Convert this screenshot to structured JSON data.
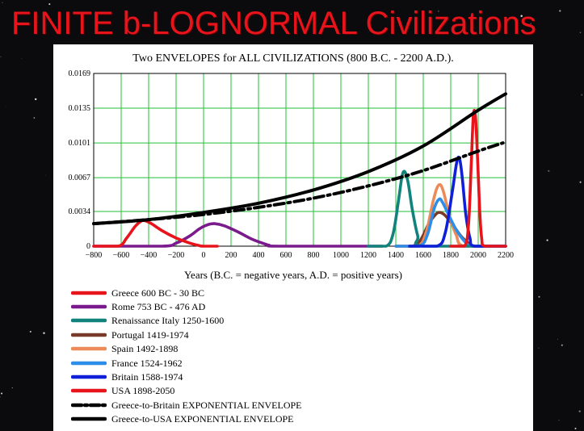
{
  "slide": {
    "title": "FINITE  b-LOGNORMAL Civilizations"
  },
  "chart_data": {
    "type": "line",
    "title": "Two ENVELOPES for ALL CIVILIZATIONS (800 B.C. - 2200 A.D.).",
    "xlabel": "Years (B.C. = negative years, A.D. = positive years)",
    "ylabel": "",
    "xlim": [
      -800,
      2200
    ],
    "ylim": [
      0,
      0.0169
    ],
    "xticks": [
      "−800",
      "−600",
      "−400",
      "−200",
      "0",
      "200",
      "400",
      "600",
      "800",
      "1000",
      "1200",
      "1400",
      "1600",
      "1800",
      "2000",
      "2200"
    ],
    "xtick_values": [
      -800,
      -600,
      -400,
      -200,
      0,
      200,
      400,
      600,
      800,
      1000,
      1200,
      1400,
      1600,
      1800,
      2000,
      2200
    ],
    "yticks": [
      "0",
      "0.0034",
      "0.0067",
      "0.0101",
      "0.0135",
      "0.0169"
    ],
    "ytick_values": [
      0,
      0.0034,
      0.0067,
      0.0101,
      0.0135,
      0.0169
    ],
    "grid": true,
    "gridColor": "#22c03a",
    "series": [
      {
        "name": "Greece 600 BC - 30 BC",
        "color": "#e8141c",
        "style": "solid",
        "x": [
          -800,
          -620,
          -560,
          -500,
          -460,
          -430,
          -380,
          -300,
          -200,
          -100,
          -30,
          0,
          100
        ],
        "y": [
          0,
          0,
          0.0008,
          0.0019,
          0.0024,
          0.0025,
          0.0022,
          0.0015,
          0.0008,
          0.0003,
          5e-05,
          0,
          0
        ]
      },
      {
        "name": "Rome 753 BC - 476 AD",
        "color": "#7a1a8c",
        "style": "solid",
        "x": [
          -800,
          -300,
          -200,
          -100,
          -30,
          30,
          80,
          150,
          250,
          350,
          450,
          476,
          550,
          1300
        ],
        "y": [
          0,
          0,
          0.0003,
          0.001,
          0.0017,
          0.0021,
          0.0022,
          0.002,
          0.0014,
          0.0007,
          0.0002,
          0.0001,
          0,
          0
        ]
      },
      {
        "name": "Renaissance Italy 1250-1600",
        "color": "#12837c",
        "style": "solid",
        "x": [
          1200,
          1330,
          1380,
          1420,
          1445,
          1465,
          1490,
          1520,
          1560,
          1600,
          2200
        ],
        "y": [
          0,
          0,
          0.0012,
          0.0045,
          0.0068,
          0.0073,
          0.0062,
          0.0036,
          0.001,
          0,
          0
        ]
      },
      {
        "name": "Portugal 1419-1974",
        "color": "#7a3a2a",
        "style": "solid",
        "x": [
          1400,
          1520,
          1580,
          1640,
          1690,
          1720,
          1760,
          1820,
          1880,
          1940,
          1974,
          2200
        ],
        "y": [
          0,
          0,
          0.0006,
          0.0022,
          0.0031,
          0.0033,
          0.003,
          0.002,
          0.0009,
          0.0002,
          0,
          0
        ]
      },
      {
        "name": "Spain 1492-1898",
        "color": "#ec8a58",
        "style": "solid",
        "x": [
          1400,
          1560,
          1620,
          1670,
          1700,
          1725,
          1750,
          1790,
          1840,
          1898,
          2200
        ],
        "y": [
          0,
          0,
          0.0013,
          0.0043,
          0.0057,
          0.006,
          0.0052,
          0.003,
          0.0011,
          0,
          0
        ]
      },
      {
        "name": "France 1524-1962",
        "color": "#2c8ee8",
        "style": "solid",
        "x": [
          1400,
          1570,
          1630,
          1680,
          1715,
          1740,
          1780,
          1840,
          1900,
          1962,
          2200
        ],
        "y": [
          0,
          0,
          0.0011,
          0.0037,
          0.0046,
          0.0043,
          0.0032,
          0.0016,
          0.0005,
          0,
          0
        ]
      },
      {
        "name": "Britain 1588-1974",
        "color": "#1020d8",
        "style": "solid",
        "x": [
          1500,
          1700,
          1760,
          1810,
          1845,
          1865,
          1885,
          1910,
          1940,
          1974,
          2200
        ],
        "y": [
          0,
          0,
          0.0013,
          0.0052,
          0.0083,
          0.0085,
          0.0066,
          0.0031,
          0.0008,
          0,
          0
        ]
      },
      {
        "name": "USA 1898-2050",
        "color": "#e8141c",
        "style": "solid",
        "x": [
          1800,
          1900,
          1930,
          1950,
          1965,
          1980,
          1995,
          2010,
          2025,
          2050,
          2200
        ],
        "y": [
          0,
          0,
          0.0022,
          0.0082,
          0.0128,
          0.0127,
          0.0088,
          0.0038,
          0.0008,
          0,
          0
        ]
      },
      {
        "name": "Greece-to-Britain EXPONENTIAL ENVELOPE",
        "color": "#000000",
        "style": "dashdot",
        "x": [
          -800,
          -400,
          0,
          400,
          800,
          1200,
          1600,
          2000,
          2180
        ],
        "y": [
          0.0022,
          0.0026,
          0.0031,
          0.0038,
          0.0047,
          0.0059,
          0.0074,
          0.0093,
          0.0101
        ]
      },
      {
        "name": "Greece-to-USA EXPONENTIAL ENVELOPE",
        "color": "#000000",
        "style": "solid",
        "x": [
          -800,
          -400,
          0,
          400,
          800,
          1200,
          1600,
          2000,
          2200
        ],
        "y": [
          0.0022,
          0.0026,
          0.0033,
          0.0042,
          0.0055,
          0.0073,
          0.0098,
          0.0133,
          0.0149
        ]
      }
    ]
  }
}
